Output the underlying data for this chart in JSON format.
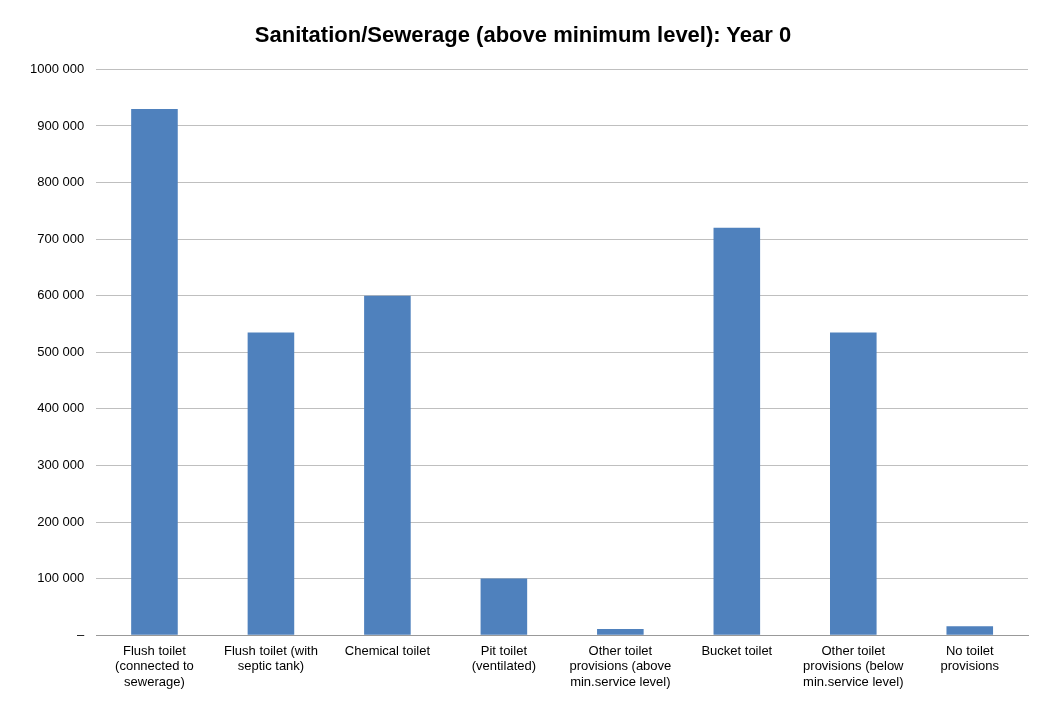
{
  "chart_data": {
    "type": "bar",
    "title": "Sanitation/Sewerage (above minimum level): Year 0",
    "categories": [
      "Flush toilet (connected to sewerage)",
      "Flush toilet (with septic tank)",
      "Chemical toilet",
      "Pit toilet (ventilated)",
      "Other toilet provisions (above min.service level)",
      "Bucket toilet",
      "Other toilet provisions (below min.service level)",
      "No toilet provisions"
    ],
    "values": [
      930000,
      535000,
      600000,
      100000,
      11000,
      720000,
      535000,
      16000
    ],
    "color": "#4f81bd",
    "ylim": [
      0,
      1000000
    ],
    "yticks": [
      {
        "value": 0,
        "label": "–"
      },
      {
        "value": 100000,
        "label": "100 000"
      },
      {
        "value": 200000,
        "label": "200 000"
      },
      {
        "value": 300000,
        "label": "300 000"
      },
      {
        "value": 400000,
        "label": "400 000"
      },
      {
        "value": 500000,
        "label": "500 000"
      },
      {
        "value": 600000,
        "label": "600 000"
      },
      {
        "value": 700000,
        "label": "700 000"
      },
      {
        "value": 800000,
        "label": "800 000"
      },
      {
        "value": 900000,
        "label": "900 000"
      },
      {
        "value": 1000000,
        "label": "1000 000"
      }
    ],
    "grid": "y",
    "legend": false
  }
}
